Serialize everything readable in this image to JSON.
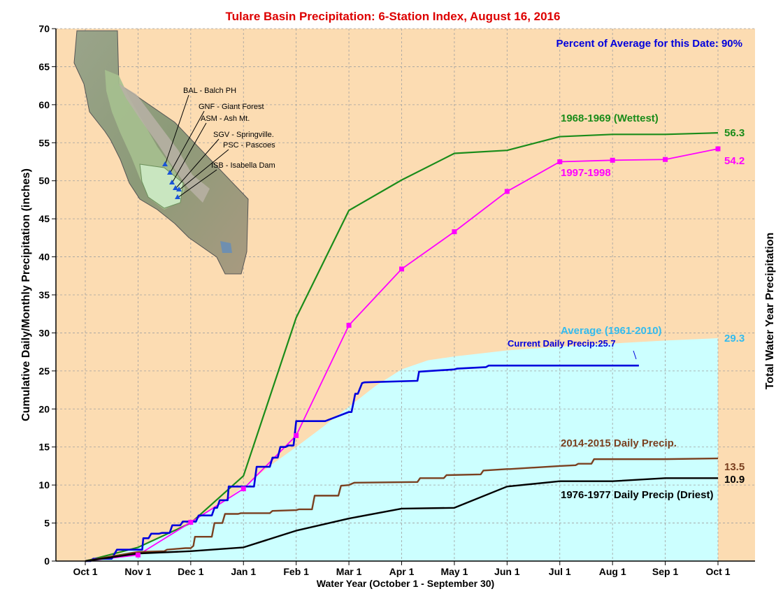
{
  "chart_data": {
    "type": "line",
    "title": "Tulare Basin Precipitation: 6-Station Index, August 16, 2016",
    "xlabel": "Water Year (October 1 - September 30)",
    "ylabel": "Cumulative Daily/Monthly Precipitation (inches)",
    "ylabel_right": "Total Water Year Precipitation",
    "percent_note": "Percent of Average for this Date: 90%",
    "ylim": [
      0,
      70
    ],
    "yticks": [
      0,
      5,
      10,
      15,
      20,
      25,
      30,
      35,
      40,
      45,
      50,
      55,
      60,
      65,
      70
    ],
    "xlim": [
      0,
      12
    ],
    "x_ticks": [
      {
        "label": "Oct 1",
        "x": 0
      },
      {
        "label": "Nov 1",
        "x": 1
      },
      {
        "label": "Dec 1",
        "x": 2
      },
      {
        "label": "Jan 1",
        "x": 3
      },
      {
        "label": "Feb 1",
        "x": 4
      },
      {
        "label": "Mar 1",
        "x": 5
      },
      {
        "label": "Apr 1",
        "x": 6
      },
      {
        "label": "May 1",
        "x": 7
      },
      {
        "label": "Jun 1",
        "x": 8
      },
      {
        "label": "Jul 1",
        "x": 9
      },
      {
        "label": "Aug 1",
        "x": 10
      },
      {
        "label": "Sep 1",
        "x": 11
      },
      {
        "label": "Oct 1",
        "x": 12
      }
    ],
    "grid": true,
    "colors": {
      "background": "#fcdcb2",
      "grid": "#a0a0a0",
      "average_fill": "#ccffff",
      "average_text": "#33bbee",
      "wettest": "#1a8c1a",
      "y1997": "#ff00ff",
      "current": "#0000dd",
      "y2015": "#7a4020",
      "driest": "#000000",
      "title": "#dd0000",
      "note": "#0000dd"
    },
    "series": [
      {
        "key": "average",
        "name": "Average (1961-2010)",
        "end_label": "29.3",
        "x": [
          0,
          0.5,
          1,
          1.5,
          2,
          2.5,
          3,
          3.5,
          4,
          4.5,
          5,
          5.5,
          6,
          6.5,
          7,
          8,
          9,
          10,
          11,
          12
        ],
        "y": [
          0,
          0.6,
          1.8,
          3.3,
          5.0,
          7.2,
          9.8,
          12.5,
          15.0,
          17.6,
          20.3,
          23.0,
          25.2,
          26.4,
          26.9,
          27.7,
          28.2,
          28.6,
          29.0,
          29.3
        ]
      },
      {
        "key": "wettest",
        "name": "1968-1969 (Wettest)",
        "end_label": "56.3",
        "x": [
          0,
          1,
          2,
          3,
          4,
          5,
          6,
          7,
          8,
          9,
          10,
          11,
          12
        ],
        "y": [
          0,
          1.8,
          5.0,
          11.2,
          32.0,
          46.1,
          50.1,
          53.6,
          54.0,
          55.8,
          56.1,
          56.1,
          56.3
        ]
      },
      {
        "key": "y1997",
        "name": "1997-1998",
        "end_label": "54.2",
        "x": [
          0,
          1,
          2,
          3,
          4,
          5,
          6,
          7,
          8,
          9,
          10,
          11,
          12
        ],
        "y": [
          0,
          0.8,
          5.1,
          9.5,
          16.5,
          31.0,
          38.4,
          43.3,
          48.6,
          52.5,
          52.7,
          52.8,
          54.2
        ]
      },
      {
        "key": "current",
        "name": "Current Daily Precip:25.7",
        "x": [
          0,
          0.1,
          0.15,
          0.5,
          0.6,
          0.7,
          0.8,
          0.9,
          1.0,
          1.08,
          1.1,
          1.2,
          1.25,
          1.4,
          1.45,
          1.6,
          1.65,
          1.8,
          1.85,
          2.1,
          2.15,
          2.4,
          2.45,
          2.5,
          2.55,
          2.7,
          2.72,
          2.8,
          2.85,
          3.2,
          3.25,
          3.5,
          3.55,
          3.65,
          3.7,
          3.8,
          3.85,
          3.95,
          4.0,
          4.5,
          4.55,
          5.0,
          5.05,
          5.12,
          5.17,
          5.25,
          5.3,
          6.3,
          6.33,
          7.0,
          7.05,
          7.6,
          7.65,
          10.5
        ],
        "y": [
          0,
          0,
          0.3,
          0.3,
          1.5,
          1.5,
          1.5,
          1.5,
          1.5,
          1.5,
          3.0,
          3.0,
          3.6,
          3.6,
          3.7,
          3.7,
          4.7,
          4.7,
          5.2,
          5.2,
          6.0,
          6.0,
          7.0,
          7.0,
          8.0,
          8.0,
          9.8,
          9.8,
          9.8,
          9.8,
          12.4,
          12.4,
          13.6,
          13.6,
          15.0,
          15.0,
          15.2,
          15.2,
          18.4,
          18.4,
          18.4,
          19.6,
          19.6,
          22.0,
          22.0,
          23.4,
          23.5,
          23.7,
          24.9,
          25.2,
          25.3,
          25.5,
          25.7,
          25.7
        ]
      },
      {
        "key": "y2015",
        "name": "2014-2015 Daily Precip.",
        "end_label": "13.5",
        "x": [
          0,
          0.9,
          1.0,
          1.5,
          1.55,
          1.9,
          2.0,
          2.05,
          2.08,
          2.4,
          2.45,
          2.6,
          2.65,
          2.9,
          2.95,
          3.5,
          3.55,
          4.0,
          4.05,
          4.3,
          4.35,
          4.8,
          4.85,
          5.0,
          5.1,
          6.3,
          6.35,
          6.8,
          6.85,
          7.5,
          7.55,
          8.0,
          8.05,
          9.0,
          9.3,
          9.35,
          9.6,
          9.65,
          10.0,
          11.0,
          12.0
        ],
        "y": [
          0,
          1.1,
          1.2,
          1.3,
          1.5,
          1.7,
          1.7,
          2.0,
          3.2,
          3.2,
          5.0,
          5.0,
          6.2,
          6.2,
          6.3,
          6.3,
          6.6,
          6.7,
          6.8,
          6.8,
          8.6,
          8.6,
          9.9,
          10.0,
          10.3,
          10.4,
          10.9,
          10.9,
          11.3,
          11.4,
          11.9,
          12.1,
          12.1,
          12.5,
          12.6,
          12.8,
          12.8,
          13.4,
          13.4,
          13.4,
          13.5
        ]
      },
      {
        "key": "driest",
        "name": "1976-1977 Daily Precip (Driest)",
        "end_label": "10.9",
        "x": [
          0,
          0.5,
          1,
          2,
          3,
          4,
          5,
          6,
          7,
          8,
          9,
          10,
          11,
          12
        ],
        "y": [
          0,
          0.5,
          1.0,
          1.3,
          1.8,
          4.0,
          5.6,
          6.9,
          7.0,
          9.8,
          10.5,
          10.5,
          10.9,
          10.9
        ]
      }
    ],
    "marker_series": "y1997"
  },
  "map": {
    "stations": [
      {
        "code": "BAL",
        "label": "BAL - Balch PH"
      },
      {
        "code": "GNF",
        "label": "GNF - Giant Forest"
      },
      {
        "code": "ASM",
        "label": "ASM - Ash Mt."
      },
      {
        "code": "SGV",
        "label": "SGV - Springville."
      },
      {
        "code": "PSC",
        "label": "PSC - Pascoes"
      },
      {
        "code": "ISB",
        "label": "ISB - Isabella Dam"
      }
    ]
  }
}
